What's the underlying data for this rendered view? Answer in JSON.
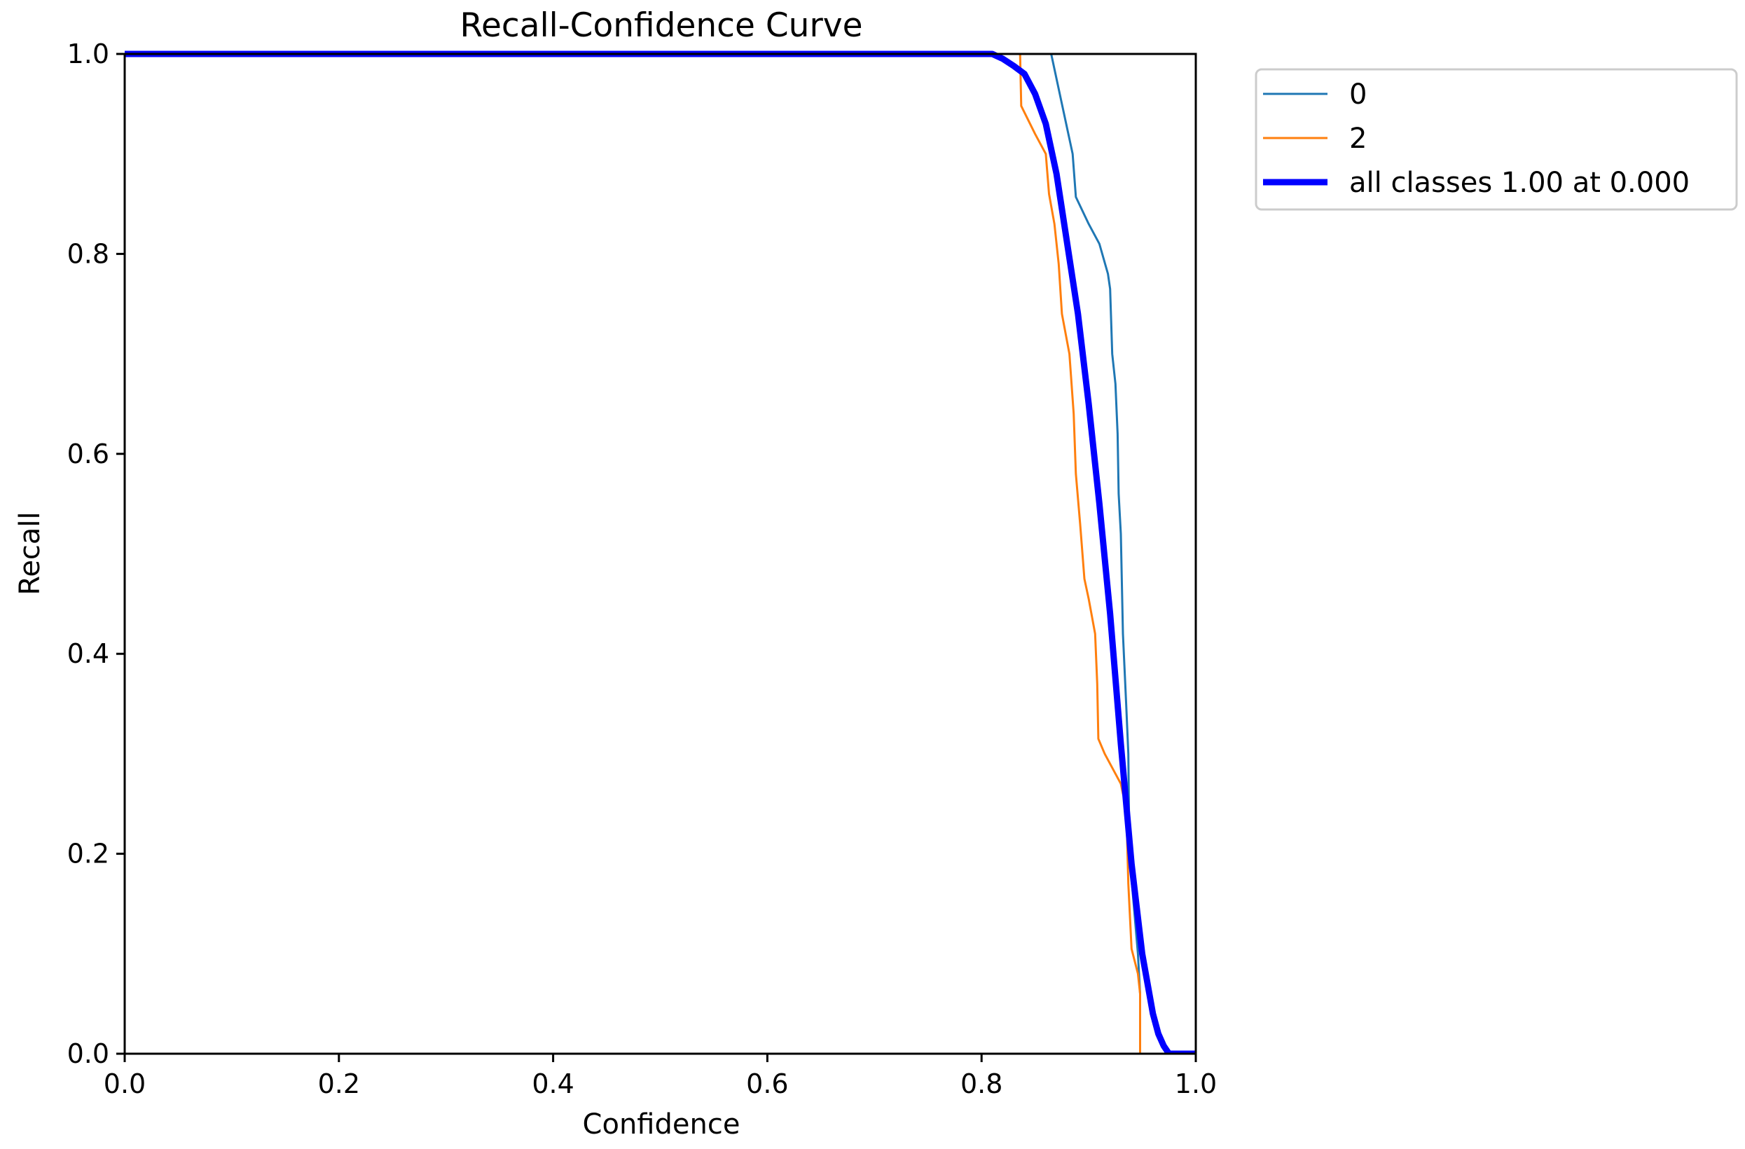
{
  "chart_data": {
    "type": "line",
    "title": "Recall-Confidence Curve",
    "xlabel": "Confidence",
    "ylabel": "Recall",
    "xlim": [
      0,
      1
    ],
    "ylim": [
      0,
      1
    ],
    "x_ticks": [
      "0.0",
      "0.2",
      "0.4",
      "0.6",
      "0.8",
      "1.0"
    ],
    "y_ticks": [
      "0.0",
      "0.2",
      "0.4",
      "0.6",
      "0.8",
      "1.0"
    ],
    "grid": false,
    "legend_position": "outside-top-right",
    "series": [
      {
        "name": "0",
        "color": "#1f77b4",
        "width": "thin",
        "points": [
          [
            0.0,
            1.0
          ],
          [
            0.865,
            1.0
          ],
          [
            0.875,
            0.95
          ],
          [
            0.885,
            0.9
          ],
          [
            0.888,
            0.857
          ],
          [
            0.9,
            0.83
          ],
          [
            0.91,
            0.81
          ],
          [
            0.918,
            0.78
          ],
          [
            0.92,
            0.765
          ],
          [
            0.922,
            0.7
          ],
          [
            0.925,
            0.67
          ],
          [
            0.927,
            0.62
          ],
          [
            0.928,
            0.56
          ],
          [
            0.93,
            0.52
          ],
          [
            0.932,
            0.42
          ],
          [
            0.935,
            0.35
          ],
          [
            0.937,
            0.3
          ],
          [
            0.938,
            0.2
          ],
          [
            0.942,
            0.15
          ],
          [
            0.946,
            0.1
          ],
          [
            0.948,
            0.06
          ],
          [
            0.948,
            0.0
          ],
          [
            1.0,
            0.0
          ]
        ]
      },
      {
        "name": "2",
        "color": "#ff7f0e",
        "width": "thin",
        "points": [
          [
            0.0,
            1.0
          ],
          [
            0.836,
            1.0
          ],
          [
            0.837,
            0.948
          ],
          [
            0.85,
            0.92
          ],
          [
            0.86,
            0.9
          ],
          [
            0.863,
            0.86
          ],
          [
            0.868,
            0.83
          ],
          [
            0.872,
            0.79
          ],
          [
            0.875,
            0.74
          ],
          [
            0.882,
            0.7
          ],
          [
            0.886,
            0.64
          ],
          [
            0.888,
            0.58
          ],
          [
            0.892,
            0.53
          ],
          [
            0.896,
            0.475
          ],
          [
            0.9,
            0.455
          ],
          [
            0.906,
            0.42
          ],
          [
            0.908,
            0.37
          ],
          [
            0.909,
            0.315
          ],
          [
            0.915,
            0.3
          ],
          [
            0.93,
            0.27
          ],
          [
            0.932,
            0.26
          ],
          [
            0.935,
            0.25
          ],
          [
            0.937,
            0.17
          ],
          [
            0.94,
            0.105
          ],
          [
            0.946,
            0.08
          ],
          [
            0.948,
            0.06
          ],
          [
            0.948,
            0.0
          ],
          [
            1.0,
            0.0
          ]
        ]
      },
      {
        "name": "all classes 1.00 at 0.000",
        "color": "#0000ff",
        "width": "thick",
        "points": [
          [
            0.0,
            1.0
          ],
          [
            0.81,
            1.0
          ],
          [
            0.82,
            0.995
          ],
          [
            0.83,
            0.988
          ],
          [
            0.84,
            0.98
          ],
          [
            0.85,
            0.96
          ],
          [
            0.86,
            0.93
          ],
          [
            0.87,
            0.88
          ],
          [
            0.88,
            0.81
          ],
          [
            0.89,
            0.74
          ],
          [
            0.9,
            0.65
          ],
          [
            0.91,
            0.55
          ],
          [
            0.92,
            0.44
          ],
          [
            0.93,
            0.31
          ],
          [
            0.94,
            0.19
          ],
          [
            0.95,
            0.1
          ],
          [
            0.96,
            0.04
          ],
          [
            0.965,
            0.02
          ],
          [
            0.97,
            0.008
          ],
          [
            0.975,
            0.0
          ],
          [
            1.0,
            0.0
          ]
        ]
      }
    ]
  }
}
